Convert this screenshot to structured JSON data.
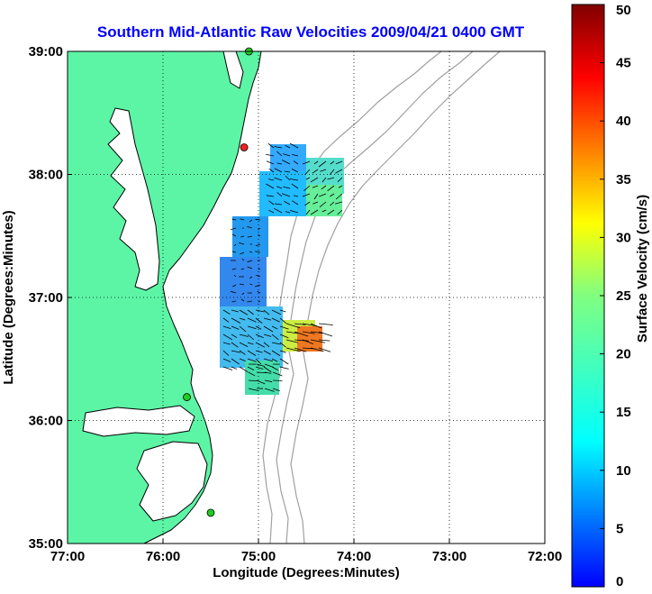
{
  "title": "Southern Mid-Atlantic Raw Velocities 2009/04/21 0400 GMT",
  "xlabel": "Longitude (Degrees:Minutes)",
  "ylabel": "Latitude (Degrees:Minutes)",
  "colorbar_label": "Surface Velocity (cm/s)",
  "colors": {
    "title": "#0000ff",
    "land": "#5cf5a6",
    "coast": "#000000",
    "bathymetry": "#a0a0a0",
    "grid": "#000000",
    "site_active": "#22cc22",
    "site_inactive": "#ee2222"
  },
  "chart_data": {
    "type": "heatmap",
    "title": "Southern Mid-Atlantic Raw Velocities 2009/04/21 0400 GMT",
    "xlabel": "Longitude (Degrees:Minutes)",
    "ylabel": "Latitude (Degrees:Minutes)",
    "xlim": [
      -77,
      -72
    ],
    "ylim": [
      35,
      39
    ],
    "x_ticks": [
      "77:00",
      "76:00",
      "75:00",
      "74:00",
      "73:00",
      "72:00"
    ],
    "y_ticks": [
      "35:00",
      "36:00",
      "37:00",
      "38:00",
      "39:00"
    ],
    "grid": "dotted",
    "colorbar": {
      "label": "Surface Velocity (cm/s)",
      "range": [
        0,
        50
      ],
      "ticks": [
        "0",
        "5",
        "10",
        "15",
        "20",
        "25",
        "30",
        "35",
        "40",
        "45",
        "50"
      ],
      "colormap": "jet"
    },
    "sites": [
      {
        "lon": -75.1,
        "lat": 39.0,
        "status": "active"
      },
      {
        "lon": -75.15,
        "lat": 38.22,
        "status": "inactive"
      },
      {
        "lon": -75.75,
        "lat": 36.19,
        "status": "active"
      },
      {
        "lon": -75.5,
        "lat": 35.25,
        "status": "active"
      }
    ]
  }
}
